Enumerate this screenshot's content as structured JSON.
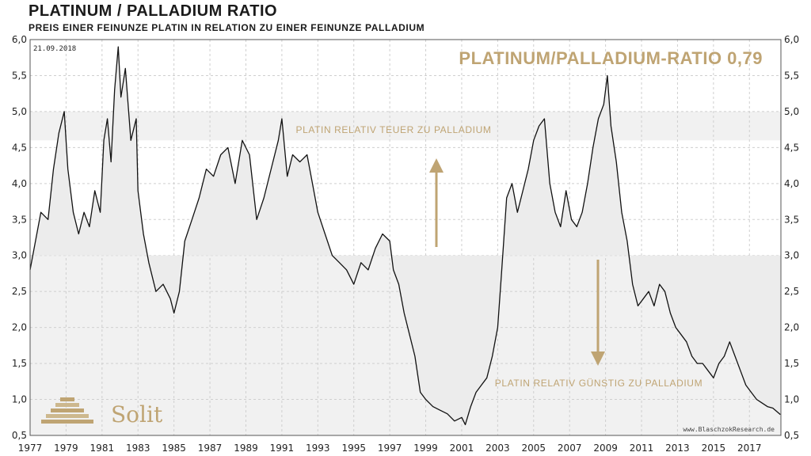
{
  "header": {
    "title": "PLATINUM / PALLADIUM RATIO",
    "subtitle": "PREIS EINER FEINUNZE PLATIN IN RELATION ZU EINER FEINUNZE PALLADIUM"
  },
  "chart_data": {
    "type": "line",
    "title": "PLATINUM / PALLADIUM RATIO",
    "subtitle": "PREIS EINER FEINUNZE PLATIN IN RELATION ZU EINER FEINUNZE PALLADIUM",
    "date_label": "21.09.2018",
    "headline_value": "PLATINUM/PALLADIUM-RATIO 0,79",
    "ylim": [
      0.5,
      6.0
    ],
    "xlim": [
      1977,
      2018.75
    ],
    "y_ticks": [
      "0,5",
      "1,0",
      "1,5",
      "2,0",
      "2,5",
      "3,0",
      "3,5",
      "4,0",
      "4,5",
      "5,0",
      "5,5",
      "6,0"
    ],
    "x_ticks": [
      "1977",
      "1979",
      "1981",
      "1983",
      "1985",
      "1987",
      "1989",
      "1991",
      "1993",
      "1995",
      "1997",
      "1999",
      "2001",
      "2003",
      "2005",
      "2007",
      "2009",
      "2011",
      "2013",
      "2015",
      "2017"
    ],
    "bands": [
      {
        "label": "PLATIN RELATIV TEUER ZU PALLADIUM",
        "from": 4.6,
        "to": 5.0
      },
      {
        "label": "PLATIN RELATIV GÜNSTIG ZU PALLADIUM",
        "from": 0.5,
        "to": 3.0
      }
    ],
    "reference_level": 3.0,
    "series": [
      {
        "name": "Platinum/Palladium Ratio",
        "x": [
          1977.0,
          1977.3,
          1977.6,
          1978.0,
          1978.3,
          1978.6,
          1978.9,
          1979.1,
          1979.4,
          1979.7,
          1980.0,
          1980.3,
          1980.6,
          1980.9,
          1981.1,
          1981.3,
          1981.5,
          1981.7,
          1981.9,
          1982.05,
          1982.3,
          1982.6,
          1982.9,
          1983.0,
          1983.3,
          1983.6,
          1984.0,
          1984.4,
          1984.8,
          1985.0,
          1985.3,
          1985.6,
          1986.0,
          1986.4,
          1986.8,
          1987.2,
          1987.6,
          1988.0,
          1988.4,
          1988.8,
          1989.2,
          1989.6,
          1990.0,
          1990.4,
          1990.8,
          1991.0,
          1991.3,
          1991.6,
          1992.0,
          1992.4,
          1992.7,
          1993.0,
          1993.4,
          1993.8,
          1994.2,
          1994.6,
          1995.0,
          1995.4,
          1995.8,
          1996.2,
          1996.6,
          1997.0,
          1997.2,
          1997.5,
          1997.8,
          1998.1,
          1998.4,
          1998.7,
          1999.0,
          1999.4,
          1999.8,
          2000.2,
          2000.6,
          2001.0,
          2001.2,
          2001.5,
          2001.8,
          2002.1,
          2002.4,
          2002.7,
          2003.0,
          2003.2,
          2003.5,
          2003.8,
          2004.1,
          2004.4,
          2004.7,
          2005.0,
          2005.3,
          2005.6,
          2005.9,
          2006.2,
          2006.5,
          2006.8,
          2007.1,
          2007.4,
          2007.7,
          2008.0,
          2008.3,
          2008.6,
          2008.9,
          2009.1,
          2009.3,
          2009.6,
          2009.9,
          2010.2,
          2010.5,
          2010.8,
          2011.1,
          2011.4,
          2011.7,
          2012.0,
          2012.3,
          2012.6,
          2012.9,
          2013.2,
          2013.5,
          2013.8,
          2014.1,
          2014.4,
          2014.7,
          2015.0,
          2015.3,
          2015.6,
          2015.9,
          2016.2,
          2016.5,
          2016.8,
          2017.1,
          2017.4,
          2017.7,
          2018.0,
          2018.3,
          2018.72
        ],
        "values": [
          2.8,
          3.2,
          3.6,
          3.5,
          4.2,
          4.7,
          5.0,
          4.2,
          3.6,
          3.3,
          3.6,
          3.4,
          3.9,
          3.6,
          4.6,
          4.9,
          4.3,
          5.3,
          5.9,
          5.2,
          5.6,
          4.6,
          4.9,
          3.9,
          3.3,
          2.9,
          2.5,
          2.6,
          2.4,
          2.2,
          2.5,
          3.2,
          3.5,
          3.8,
          4.2,
          4.1,
          4.4,
          4.5,
          4.0,
          4.6,
          4.4,
          3.5,
          3.8,
          4.2,
          4.6,
          4.9,
          4.1,
          4.4,
          4.3,
          4.4,
          4.0,
          3.6,
          3.3,
          3.0,
          2.9,
          2.8,
          2.6,
          2.9,
          2.8,
          3.1,
          3.3,
          3.2,
          2.8,
          2.6,
          2.2,
          1.9,
          1.6,
          1.1,
          1.0,
          0.9,
          0.85,
          0.8,
          0.7,
          0.75,
          0.65,
          0.9,
          1.1,
          1.2,
          1.3,
          1.6,
          2.0,
          2.7,
          3.8,
          4.0,
          3.6,
          3.9,
          4.2,
          4.6,
          4.8,
          4.9,
          4.0,
          3.6,
          3.4,
          3.9,
          3.5,
          3.4,
          3.6,
          4.0,
          4.5,
          4.9,
          5.1,
          5.5,
          4.8,
          4.3,
          3.6,
          3.2,
          2.6,
          2.3,
          2.4,
          2.5,
          2.3,
          2.6,
          2.5,
          2.2,
          2.0,
          1.9,
          1.8,
          1.6,
          1.5,
          1.5,
          1.4,
          1.3,
          1.5,
          1.6,
          1.8,
          1.6,
          1.4,
          1.2,
          1.1,
          1.0,
          0.95,
          0.9,
          0.88,
          0.79
        ]
      }
    ]
  },
  "watermark": "www.BlaschzokResearch.de",
  "logo_text": "Solit",
  "colors": {
    "line": "#111111",
    "fill": "#f1f1f1",
    "grid": "#cfcfcf",
    "accent": "#bfa473"
  }
}
